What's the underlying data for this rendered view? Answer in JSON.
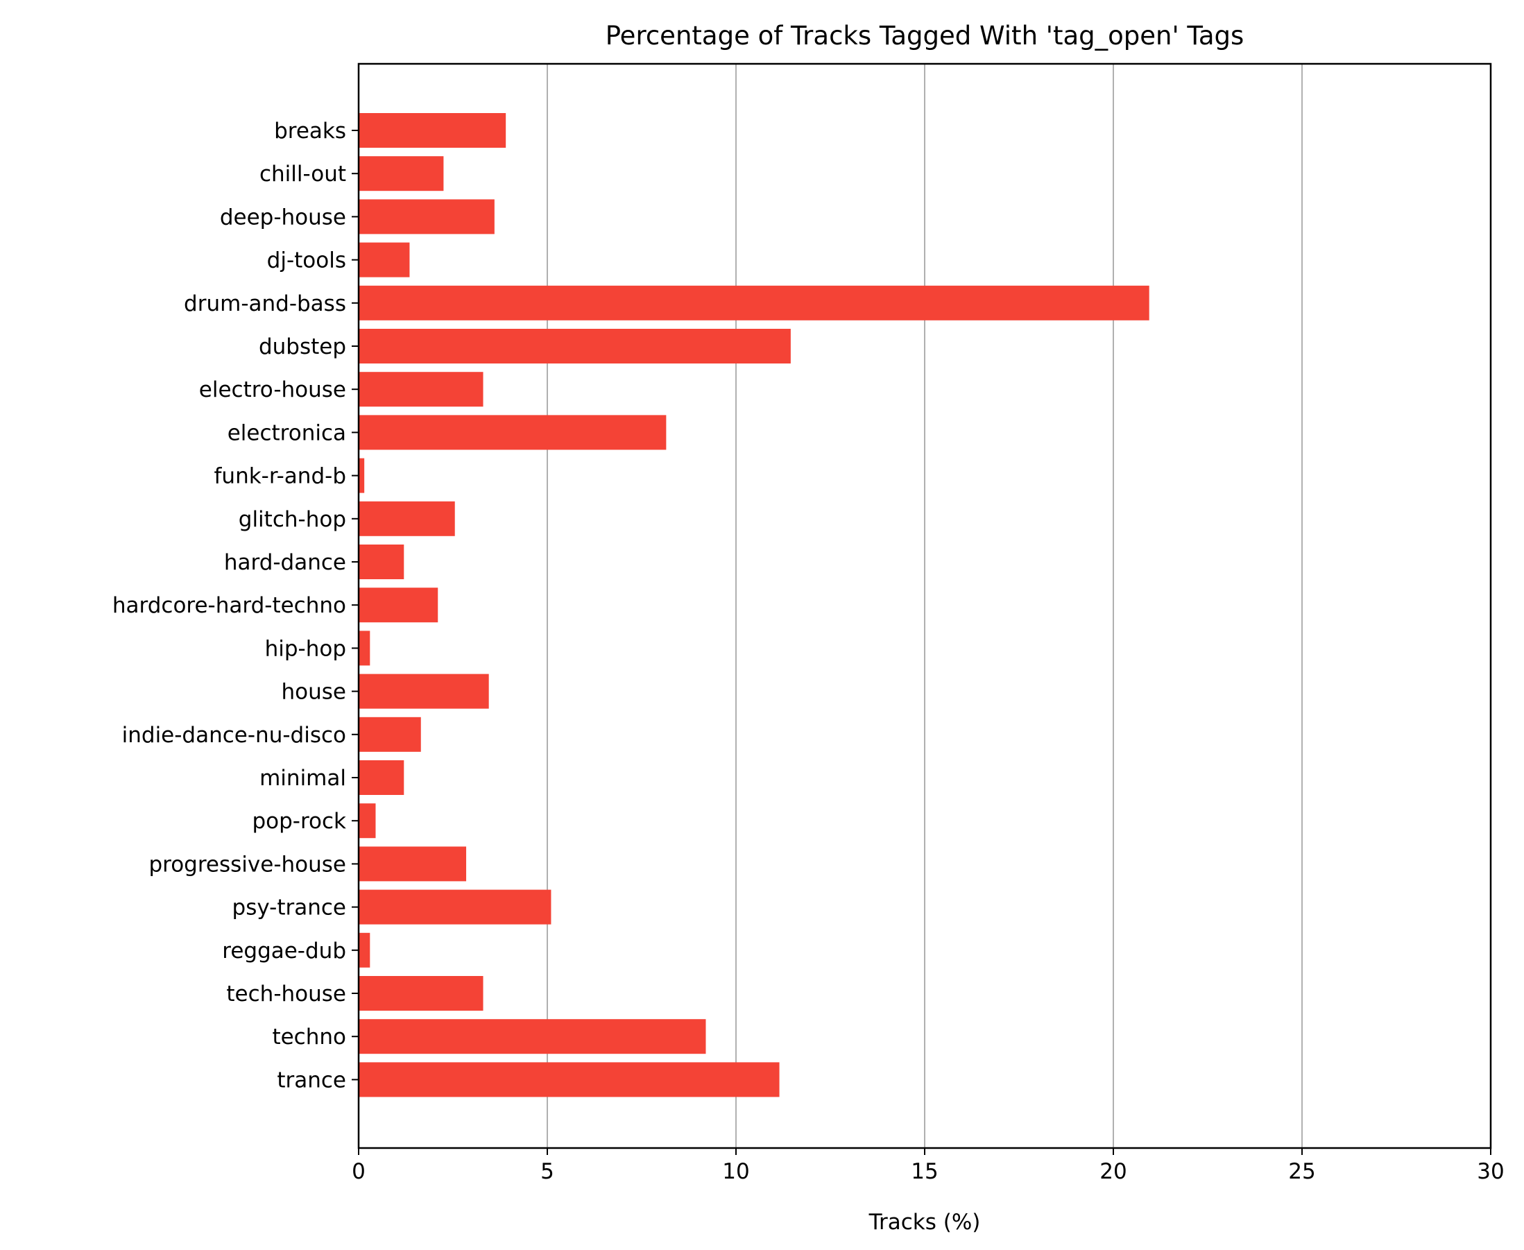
{
  "chart_data": {
    "type": "bar",
    "orientation": "horizontal",
    "title": "Percentage of Tracks Tagged With 'tag_open' Tags",
    "xlabel": "Tracks (%)",
    "ylabel": "",
    "xlim": [
      0,
      30
    ],
    "xticks": [
      "0",
      "5",
      "10",
      "15",
      "20",
      "25",
      "30"
    ],
    "grid": "vertical",
    "legend": "none",
    "bar_color": "#f44336",
    "categories": [
      "breaks",
      "chill-out",
      "deep-house",
      "dj-tools",
      "drum-and-bass",
      "dubstep",
      "electro-house",
      "electronica",
      "funk-r-and-b",
      "glitch-hop",
      "hard-dance",
      "hardcore-hard-techno",
      "hip-hop",
      "house",
      "indie-dance-nu-disco",
      "minimal",
      "pop-rock",
      "progressive-house",
      "psy-trance",
      "reggae-dub",
      "tech-house",
      "techno",
      "trance"
    ],
    "values": [
      3.9,
      2.25,
      3.6,
      1.35,
      20.95,
      11.45,
      3.3,
      8.15,
      0.15,
      2.55,
      1.2,
      2.1,
      0.3,
      3.45,
      1.65,
      1.2,
      0.45,
      2.85,
      5.1,
      0.3,
      3.3,
      9.2,
      11.15
    ]
  }
}
